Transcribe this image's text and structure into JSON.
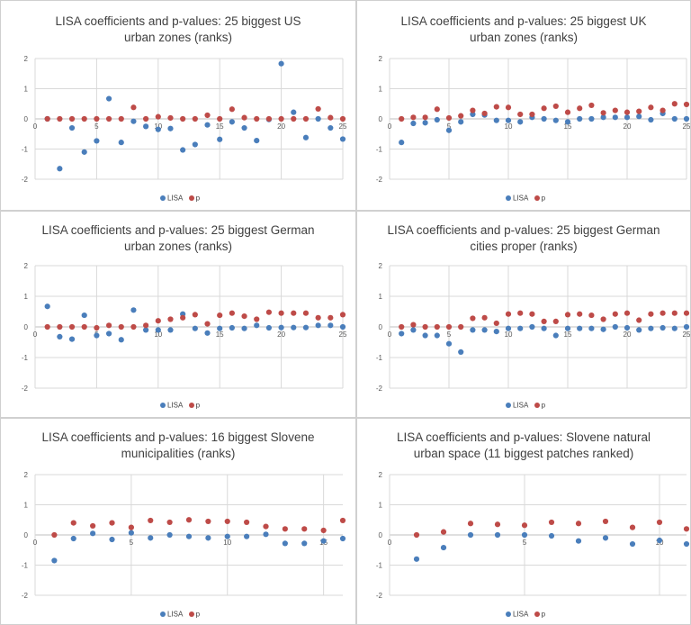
{
  "colors": {
    "lisa": "#4a7ebb",
    "p": "#be4b48",
    "grid": "#d9d9d9",
    "axis": "#bfbfbf",
    "tick_text": "#595959"
  },
  "chart_data": [
    {
      "type": "scatter",
      "title_lines": [
        "LISA coefficients and p-values: 25 biggest US",
        "urban zones (ranks)"
      ],
      "x_ticks": [
        0,
        5,
        10,
        15,
        20,
        25
      ],
      "xlim": [
        0,
        25
      ],
      "y_ticks": [
        -2,
        -1,
        0,
        1,
        2
      ],
      "ylim": [
        -2,
        2
      ],
      "legend": [
        "LISA",
        "p"
      ],
      "series": [
        {
          "name": "LISA",
          "x": [
            1,
            2,
            3,
            4,
            5,
            6,
            7,
            8,
            9,
            10,
            11,
            12,
            13,
            14,
            15,
            16,
            17,
            18,
            19,
            20,
            21,
            22,
            23,
            24,
            25
          ],
          "y": [
            0,
            -1.65,
            -0.3,
            -1.1,
            -0.73,
            0.67,
            -0.78,
            -0.08,
            -0.25,
            -0.35,
            -0.32,
            -1.03,
            -0.85,
            -0.2,
            -0.68,
            -0.1,
            -0.3,
            -0.72,
            -0.02,
            1.83,
            0.22,
            -0.62,
            0,
            -0.3,
            -0.67
          ]
        },
        {
          "name": "p",
          "x": [
            1,
            2,
            3,
            4,
            5,
            6,
            7,
            8,
            9,
            10,
            11,
            12,
            13,
            14,
            15,
            16,
            17,
            18,
            19,
            20,
            21,
            22,
            23,
            24,
            25
          ],
          "y": [
            0,
            0,
            0,
            0,
            0,
            0,
            0,
            0.38,
            0,
            0.07,
            0.03,
            0,
            0,
            0.12,
            0,
            0.32,
            0.04,
            0,
            0,
            0,
            0,
            0,
            0.33,
            0.04,
            0
          ]
        }
      ]
    },
    {
      "type": "scatter",
      "title_lines": [
        "LISA coefficients and p-values: 25 biggest UK",
        "urban zones (ranks)"
      ],
      "x_ticks": [
        0,
        5,
        10,
        15,
        20,
        25
      ],
      "xlim": [
        0,
        25
      ],
      "y_ticks": [
        -2,
        -1,
        0,
        1,
        2
      ],
      "ylim": [
        -2,
        2
      ],
      "legend": [
        "LISA",
        "p"
      ],
      "series": [
        {
          "name": "LISA",
          "x": [
            1,
            2,
            3,
            4,
            5,
            6,
            7,
            8,
            9,
            10,
            11,
            12,
            13,
            14,
            15,
            16,
            17,
            18,
            19,
            20,
            21,
            22,
            23,
            24,
            25
          ],
          "y": [
            -0.78,
            -0.15,
            -0.13,
            -0.03,
            -0.38,
            -0.1,
            0.15,
            0.13,
            -0.05,
            -0.05,
            -0.1,
            0.05,
            0,
            -0.05,
            -0.1,
            0,
            0,
            0.05,
            0.05,
            0.05,
            0.08,
            -0.03,
            0.18,
            0,
            0
          ]
        },
        {
          "name": "p",
          "x": [
            1,
            2,
            3,
            4,
            5,
            6,
            7,
            8,
            9,
            10,
            11,
            12,
            13,
            14,
            15,
            16,
            17,
            18,
            19,
            20,
            21,
            22,
            23,
            24,
            25
          ],
          "y": [
            0,
            0.05,
            0.05,
            0.32,
            0.03,
            0.1,
            0.28,
            0.18,
            0.4,
            0.38,
            0.15,
            0.15,
            0.35,
            0.42,
            0.22,
            0.35,
            0.45,
            0.2,
            0.28,
            0.22,
            0.25,
            0.38,
            0.28,
            0.5,
            0.48
          ]
        }
      ]
    },
    {
      "type": "scatter",
      "title_lines": [
        "LISA coefficients and p-values: 25 biggest German",
        "urban zones (ranks)"
      ],
      "x_ticks": [
        0,
        5,
        10,
        15,
        20,
        25
      ],
      "xlim": [
        0,
        25
      ],
      "y_ticks": [
        -2,
        -1,
        0,
        1,
        2
      ],
      "ylim": [
        -2,
        2
      ],
      "legend": [
        "LISA",
        "p"
      ],
      "series": [
        {
          "name": "LISA",
          "x": [
            1,
            2,
            3,
            4,
            5,
            6,
            7,
            8,
            9,
            10,
            11,
            12,
            13,
            14,
            15,
            16,
            17,
            18,
            19,
            20,
            21,
            22,
            23,
            24,
            25
          ],
          "y": [
            0.67,
            -0.32,
            -0.4,
            0.38,
            -0.28,
            -0.22,
            -0.42,
            0.55,
            -0.1,
            -0.1,
            -0.1,
            0.42,
            -0.05,
            -0.2,
            -0.05,
            -0.03,
            -0.05,
            0.05,
            -0.03,
            -0.02,
            -0.02,
            -0.02,
            0.05,
            0.05,
            0
          ]
        },
        {
          "name": "p",
          "x": [
            1,
            2,
            3,
            4,
            5,
            6,
            7,
            8,
            9,
            10,
            11,
            12,
            13,
            14,
            15,
            16,
            17,
            18,
            19,
            20,
            21,
            22,
            23,
            24,
            25
          ],
          "y": [
            0,
            0,
            0,
            0,
            -0.03,
            0.05,
            0,
            0,
            0.05,
            0.2,
            0.25,
            0.3,
            0.4,
            0.1,
            0.38,
            0.45,
            0.35,
            0.25,
            0.48,
            0.45,
            0.45,
            0.45,
            0.3,
            0.3,
            0.4
          ]
        }
      ]
    },
    {
      "type": "scatter",
      "title_lines": [
        "LISA coefficients and p-values: 25 biggest German",
        "cities proper (ranks)"
      ],
      "x_ticks": [
        0,
        5,
        10,
        15,
        20,
        25
      ],
      "xlim": [
        0,
        25
      ],
      "y_ticks": [
        -2,
        -1,
        0,
        1,
        2
      ],
      "ylim": [
        -2,
        2
      ],
      "legend": [
        "LISA",
        "p"
      ],
      "series": [
        {
          "name": "LISA",
          "x": [
            1,
            2,
            3,
            4,
            5,
            6,
            7,
            8,
            9,
            10,
            11,
            12,
            13,
            14,
            15,
            16,
            17,
            18,
            19,
            20,
            21,
            22,
            23,
            24,
            25
          ],
          "y": [
            -0.22,
            -0.1,
            -0.28,
            -0.28,
            -0.55,
            -0.82,
            -0.1,
            -0.1,
            -0.15,
            -0.05,
            -0.05,
            0,
            -0.05,
            -0.28,
            -0.05,
            -0.05,
            -0.05,
            -0.08,
            0,
            -0.03,
            -0.1,
            -0.05,
            -0.03,
            -0.05,
            0
          ]
        },
        {
          "name": "p",
          "x": [
            1,
            2,
            3,
            4,
            5,
            6,
            7,
            8,
            9,
            10,
            11,
            12,
            13,
            14,
            15,
            16,
            17,
            18,
            19,
            20,
            21,
            22,
            23,
            24,
            25
          ],
          "y": [
            0,
            0.07,
            0,
            0,
            0,
            0,
            0.28,
            0.3,
            0.12,
            0.42,
            0.45,
            0.42,
            0.18,
            0.18,
            0.4,
            0.42,
            0.38,
            0.25,
            0.42,
            0.45,
            0.22,
            0.42,
            0.45,
            0.45,
            0.45
          ]
        }
      ]
    },
    {
      "type": "scatter",
      "title_lines": [
        "LISA coefficients and p-values: 16 biggest Slovene",
        "municipalities (ranks)"
      ],
      "x_ticks": [
        0,
        5,
        10,
        15
      ],
      "xlim": [
        0,
        16
      ],
      "y_ticks": [
        -2,
        -1,
        0,
        1,
        2
      ],
      "ylim": [
        -2,
        2
      ],
      "legend": [
        "LISA",
        "p"
      ],
      "series": [
        {
          "name": "LISA",
          "x": [
            1,
            2,
            3,
            4,
            5,
            6,
            7,
            8,
            9,
            10,
            11,
            12,
            13,
            14,
            15,
            16
          ],
          "y": [
            -0.85,
            -0.12,
            0.05,
            -0.15,
            0.07,
            -0.1,
            0,
            -0.05,
            -0.1,
            -0.05,
            -0.05,
            0.02,
            -0.28,
            -0.28,
            -0.2,
            -0.12
          ]
        },
        {
          "name": "p",
          "x": [
            1,
            2,
            3,
            4,
            5,
            6,
            7,
            8,
            9,
            10,
            11,
            12,
            13,
            14,
            15,
            16
          ],
          "y": [
            0,
            0.4,
            0.3,
            0.4,
            0.25,
            0.48,
            0.42,
            0.5,
            0.45,
            0.45,
            0.42,
            0.28,
            0.2,
            0.2,
            0.15,
            0.48
          ]
        }
      ]
    },
    {
      "type": "scatter",
      "title_lines": [
        "LISA coefficients and p-values: Slovene natural",
        "urban space (11 biggest patches ranked)"
      ],
      "x_ticks": [
        0,
        5,
        10
      ],
      "xlim": [
        0,
        11
      ],
      "y_ticks": [
        -2,
        -1,
        0,
        1,
        2
      ],
      "ylim": [
        -2,
        2
      ],
      "legend": [
        "LISA",
        "p"
      ],
      "series": [
        {
          "name": "LISA",
          "x": [
            1,
            2,
            3,
            4,
            5,
            6,
            7,
            8,
            9,
            10,
            11
          ],
          "y": [
            -0.8,
            -0.42,
            0,
            0,
            0,
            -0.03,
            -0.2,
            -0.1,
            -0.3,
            -0.18,
            -0.3
          ]
        },
        {
          "name": "p",
          "x": [
            1,
            2,
            3,
            4,
            5,
            6,
            7,
            8,
            9,
            10,
            11
          ],
          "y": [
            0,
            0.1,
            0.38,
            0.35,
            0.32,
            0.42,
            0.38,
            0.45,
            0.25,
            0.42,
            0.2
          ]
        }
      ]
    }
  ]
}
